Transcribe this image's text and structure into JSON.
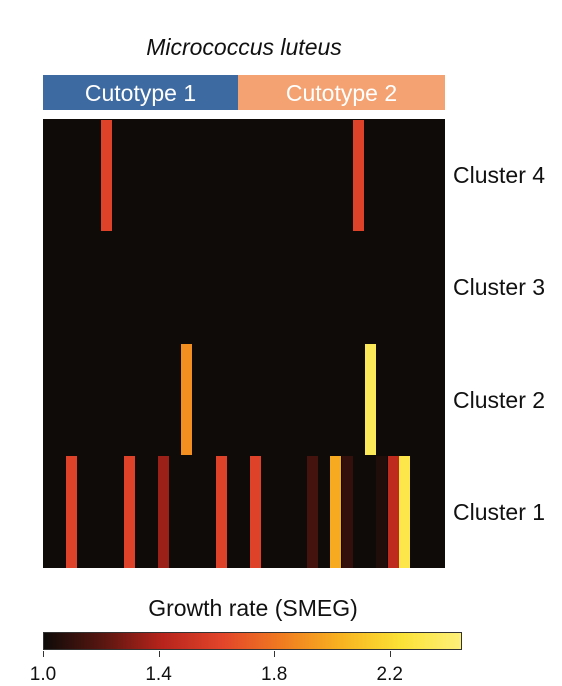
{
  "chart_data": {
    "type": "heatmap",
    "title": "Micrococcus luteus",
    "groups": [
      {
        "label": "Cutotype 1",
        "color": "#3d6aa0"
      },
      {
        "label": "Cutotype 2",
        "color": "#f4a271"
      }
    ],
    "rows": [
      "Cluster 4",
      "Cluster 3",
      "Cluster 2",
      "Cluster 1"
    ],
    "n_columns": 35,
    "background_value": null,
    "cells": [
      {
        "row": "Cluster 4",
        "col": 5,
        "value": 1.6
      },
      {
        "row": "Cluster 4",
        "col": 27,
        "value": 1.6
      },
      {
        "row": "Cluster 2",
        "col": 12,
        "value": 1.9
      },
      {
        "row": "Cluster 2",
        "col": 28,
        "value": 2.35
      },
      {
        "row": "Cluster 1",
        "col": 2,
        "value": 1.6
      },
      {
        "row": "Cluster 1",
        "col": 7,
        "value": 1.6
      },
      {
        "row": "Cluster 1",
        "col": 10,
        "value": 1.35
      },
      {
        "row": "Cluster 1",
        "col": 15,
        "value": 1.6
      },
      {
        "row": "Cluster 1",
        "col": 18,
        "value": 1.6
      },
      {
        "row": "Cluster 1",
        "col": 23,
        "value": 1.15
      },
      {
        "row": "Cluster 1",
        "col": 25,
        "value": 2.0
      },
      {
        "row": "Cluster 1",
        "col": 26,
        "value": 1.1
      },
      {
        "row": "Cluster 1",
        "col": 29,
        "value": 1.05
      },
      {
        "row": "Cluster 1",
        "col": 30,
        "value": 1.45
      },
      {
        "row": "Cluster 1",
        "col": 31,
        "value": 2.3
      }
    ],
    "colorbar": {
      "label": "Growth rate (SMEG)",
      "min": 1.0,
      "max": 2.45,
      "ticks": [
        "1.0",
        "1.4",
        "1.8",
        "2.2"
      ],
      "colormap": [
        "#0e0b09",
        "#5a1610",
        "#b8241c",
        "#e2452a",
        "#f07c20",
        "#f8b420",
        "#fbe236",
        "#fdf07a"
      ]
    }
  }
}
